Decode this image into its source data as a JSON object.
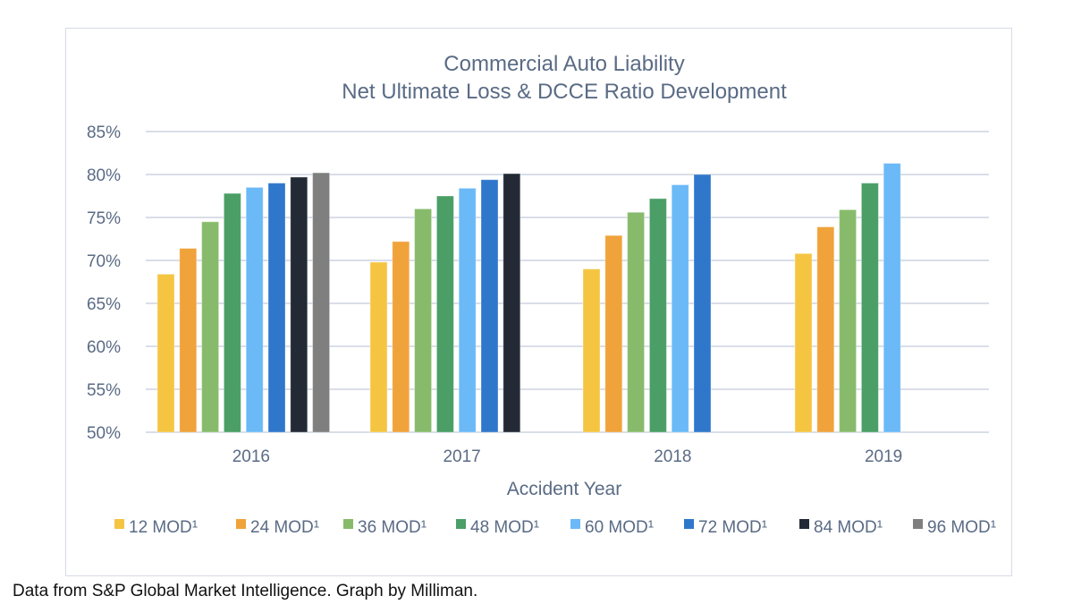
{
  "chart_data": {
    "type": "bar",
    "title": [
      "Commercial Auto Liability",
      "Net Ultimate Loss & DCCE Ratio Development"
    ],
    "xlabel": "Accident Year",
    "ylabel": "",
    "categories": [
      "2016",
      "2017",
      "2018",
      "2019"
    ],
    "ylim": [
      50,
      85
    ],
    "yticks": [
      50,
      55,
      60,
      65,
      70,
      75,
      80,
      85
    ],
    "ytick_labels": [
      "50%",
      "55%",
      "60%",
      "65%",
      "70%",
      "75%",
      "80%",
      "85%"
    ],
    "grid": true,
    "legend_position": "bottom",
    "series": [
      {
        "name": "12 MOD¹",
        "color": "#f5c542",
        "values": [
          68.4,
          69.8,
          69.0,
          70.8
        ]
      },
      {
        "name": "24 MOD¹",
        "color": "#f0a33a",
        "values": [
          71.4,
          72.2,
          72.9,
          73.9
        ]
      },
      {
        "name": "36 MOD¹",
        "color": "#87bb6b",
        "values": [
          74.5,
          76.0,
          75.6,
          75.9
        ]
      },
      {
        "name": "48 MOD¹",
        "color": "#4a9e66",
        "values": [
          77.8,
          77.5,
          77.2,
          79.0
        ]
      },
      {
        "name": "60 MOD¹",
        "color": "#6bb9f7",
        "values": [
          78.5,
          78.4,
          78.8,
          81.3
        ]
      },
      {
        "name": "72 MOD¹",
        "color": "#2f77cb",
        "values": [
          79.0,
          79.4,
          80.0,
          null
        ]
      },
      {
        "name": "84 MOD¹",
        "color": "#232a36",
        "values": [
          79.7,
          80.1,
          null,
          null
        ]
      },
      {
        "name": "96 MOD¹",
        "color": "#7f7f7f",
        "values": [
          80.2,
          null,
          null,
          null
        ]
      }
    ]
  },
  "caption": "Data from S&P Global Market Intelligence. Graph by Milliman."
}
